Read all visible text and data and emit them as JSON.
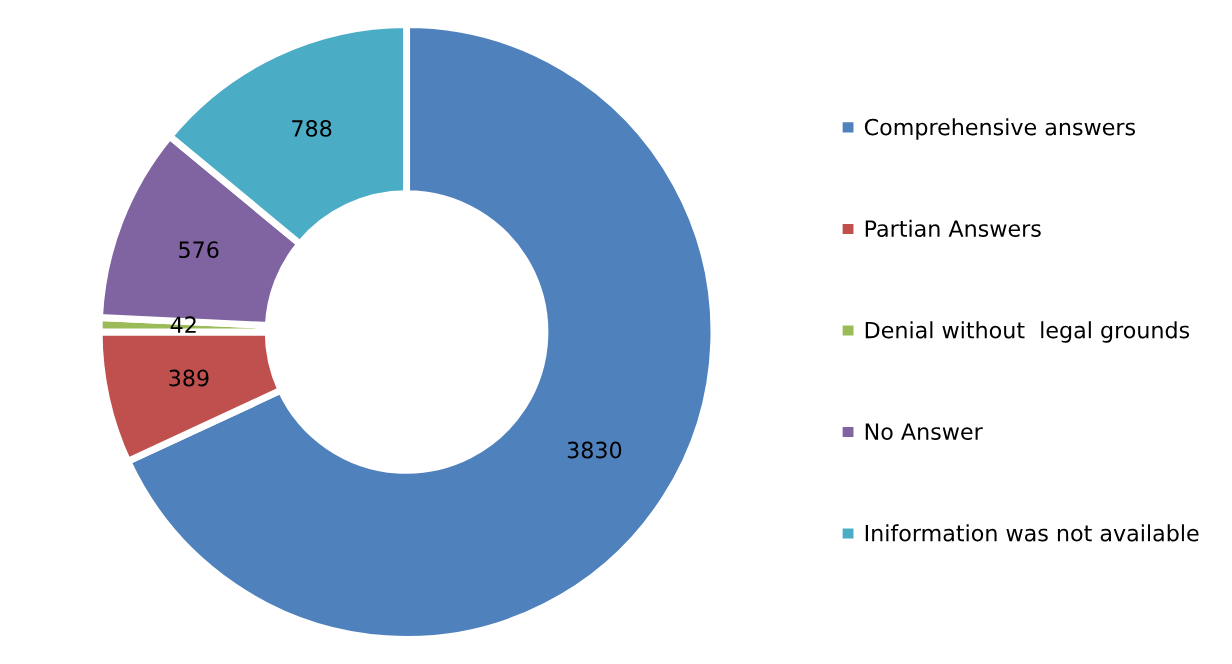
{
  "chart_data": {
    "type": "donut",
    "categories": [
      "Comprehensive answers",
      "Partian Answers",
      "Denial without  legal grounds",
      "No Answer",
      "Iniformation was not available"
    ],
    "values": [
      3830,
      389,
      42,
      576,
      788
    ],
    "colors": [
      "#4f81bd",
      "#c0504d",
      "#9bbb59",
      "#8064a2",
      "#4bacc6"
    ],
    "data_labels": true,
    "legend": "right"
  }
}
